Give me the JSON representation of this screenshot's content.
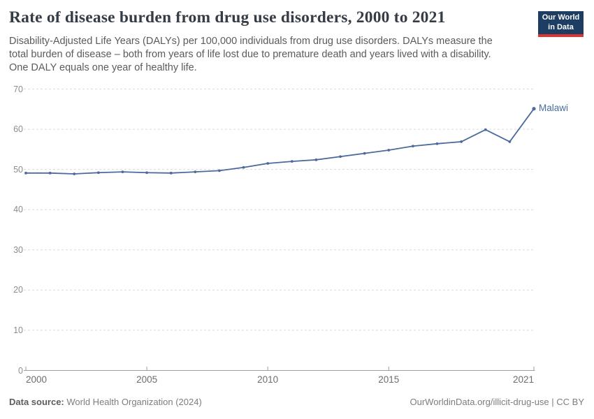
{
  "header": {
    "title": "Rate of disease burden from drug use disorders, 2000 to 2021",
    "subtitle_lines": [
      "Disability-Adjusted Life Years (DALYs) per 100,000 individuals from drug use disorders. DALYs measure the",
      "total burden of disease – both from years of life lost due to premature death and years lived with a disability.",
      "One DALY equals one year of healthy life."
    ],
    "logo": {
      "line1": "Our World",
      "line2": "in Data",
      "bg_color": "#1d3d63",
      "stripe_color": "#dc3434"
    }
  },
  "chart_data": {
    "type": "line",
    "title": "Rate of disease burden from drug use disorders, 2000 to 2021",
    "x": [
      2000,
      2001,
      2002,
      2003,
      2004,
      2005,
      2006,
      2007,
      2008,
      2009,
      2010,
      2011,
      2012,
      2013,
      2014,
      2015,
      2016,
      2017,
      2018,
      2019,
      2020,
      2021
    ],
    "series": [
      {
        "name": "Malawi",
        "color": "#4C6A9C",
        "values": [
          49.1,
          49.1,
          48.9,
          49.2,
          49.4,
          49.2,
          49.1,
          49.4,
          49.7,
          50.5,
          51.5,
          52.0,
          52.4,
          53.2,
          54.0,
          54.8,
          55.8,
          56.4,
          56.9,
          59.9,
          56.9,
          65.1
        ]
      }
    ],
    "xlabel": "",
    "ylabel": "",
    "ylim": [
      0,
      70
    ],
    "yticks": [
      0,
      10,
      20,
      30,
      40,
      50,
      60,
      70
    ],
    "xticks": [
      2000,
      2005,
      2010,
      2015,
      2021
    ],
    "grid": "horizontal-dashed",
    "legend_position": "end-of-line-label"
  },
  "footer": {
    "source_label": "Data source:",
    "source_text": " World Health Organization (2024)",
    "credit": "OurWorldinData.org/illicit-drug-use | CC BY"
  }
}
